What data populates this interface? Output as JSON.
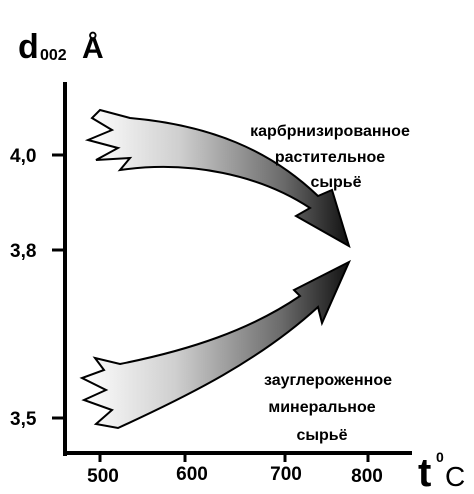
{
  "axes": {
    "y_label": {
      "symbol": "d",
      "subscript": "002",
      "unit": "Å"
    },
    "x_label": {
      "symbol": "t",
      "superscript": "0",
      "unit": "C"
    },
    "y_ticks": [
      "4,0",
      "3,8",
      "3,5"
    ],
    "x_ticks": [
      "500",
      "600",
      "700",
      "800"
    ]
  },
  "arrows": [
    {
      "label": [
        "карбрнизированное",
        "растительное",
        "сырьё"
      ]
    },
    {
      "label": [
        "зауглероженное",
        "минеральное",
        "сырьё"
      ]
    }
  ]
}
